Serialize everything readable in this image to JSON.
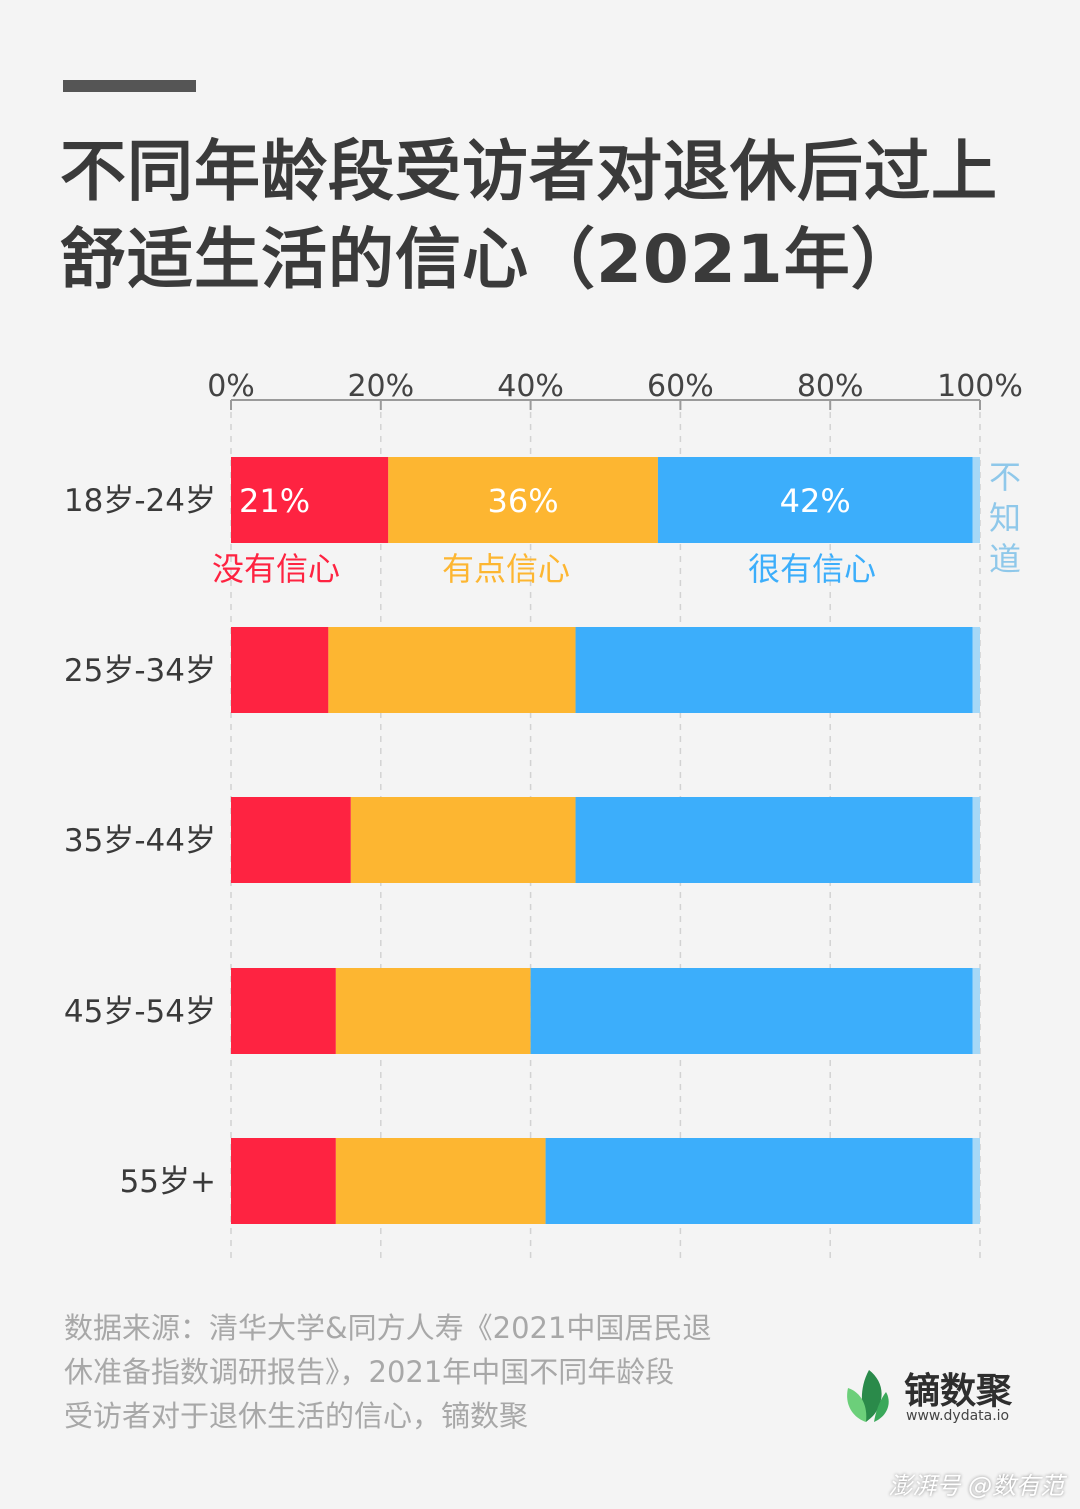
{
  "header": {
    "title_line1": "不同年龄段受访者对退休后过上",
    "title_line2": "舒适生活的信心（2021年）"
  },
  "chart_data": {
    "type": "bar",
    "orientation": "horizontal",
    "stacked": true,
    "xlim": [
      0,
      100
    ],
    "x_ticks": [
      "0%",
      "20%",
      "40%",
      "60%",
      "80%",
      "100%"
    ],
    "grid": "vertical-dashed",
    "categories": [
      "18岁-24岁",
      "25岁-34岁",
      "35岁-44岁",
      "45岁-54岁",
      "55岁+"
    ],
    "series": [
      {
        "name": "没有信心",
        "color": "#fe2341",
        "values": [
          21,
          13,
          16,
          14,
          14
        ]
      },
      {
        "name": "有点信心",
        "color": "#fdb631",
        "values": [
          36,
          33,
          30,
          26,
          28
        ]
      },
      {
        "name": "很有信心",
        "color": "#3caefb",
        "values": [
          42,
          53,
          53,
          59,
          57
        ]
      },
      {
        "name": "不知道",
        "color": "#a6d8f7",
        "values": [
          1,
          1,
          1,
          1,
          1
        ]
      }
    ],
    "data_labels": [
      "21%",
      "36%",
      "42%"
    ],
    "unknown_label_chars": [
      "不",
      "知",
      "道"
    ]
  },
  "footer": {
    "source_line1": "数据来源：清华大学&同方人寿《2021中国居民退",
    "source_line2": "休准备指数调研报告》，2021年中国不同年龄段",
    "source_line3": "受访者对于退休生活的信心，镝数聚",
    "brand_name": "镝数聚",
    "brand_url": "www.dydata.io",
    "brand_colors": {
      "leaf_dark": "#2a8a4a",
      "leaf_light": "#6ccf7a"
    },
    "watermark": "澎湃号 @数有范"
  }
}
